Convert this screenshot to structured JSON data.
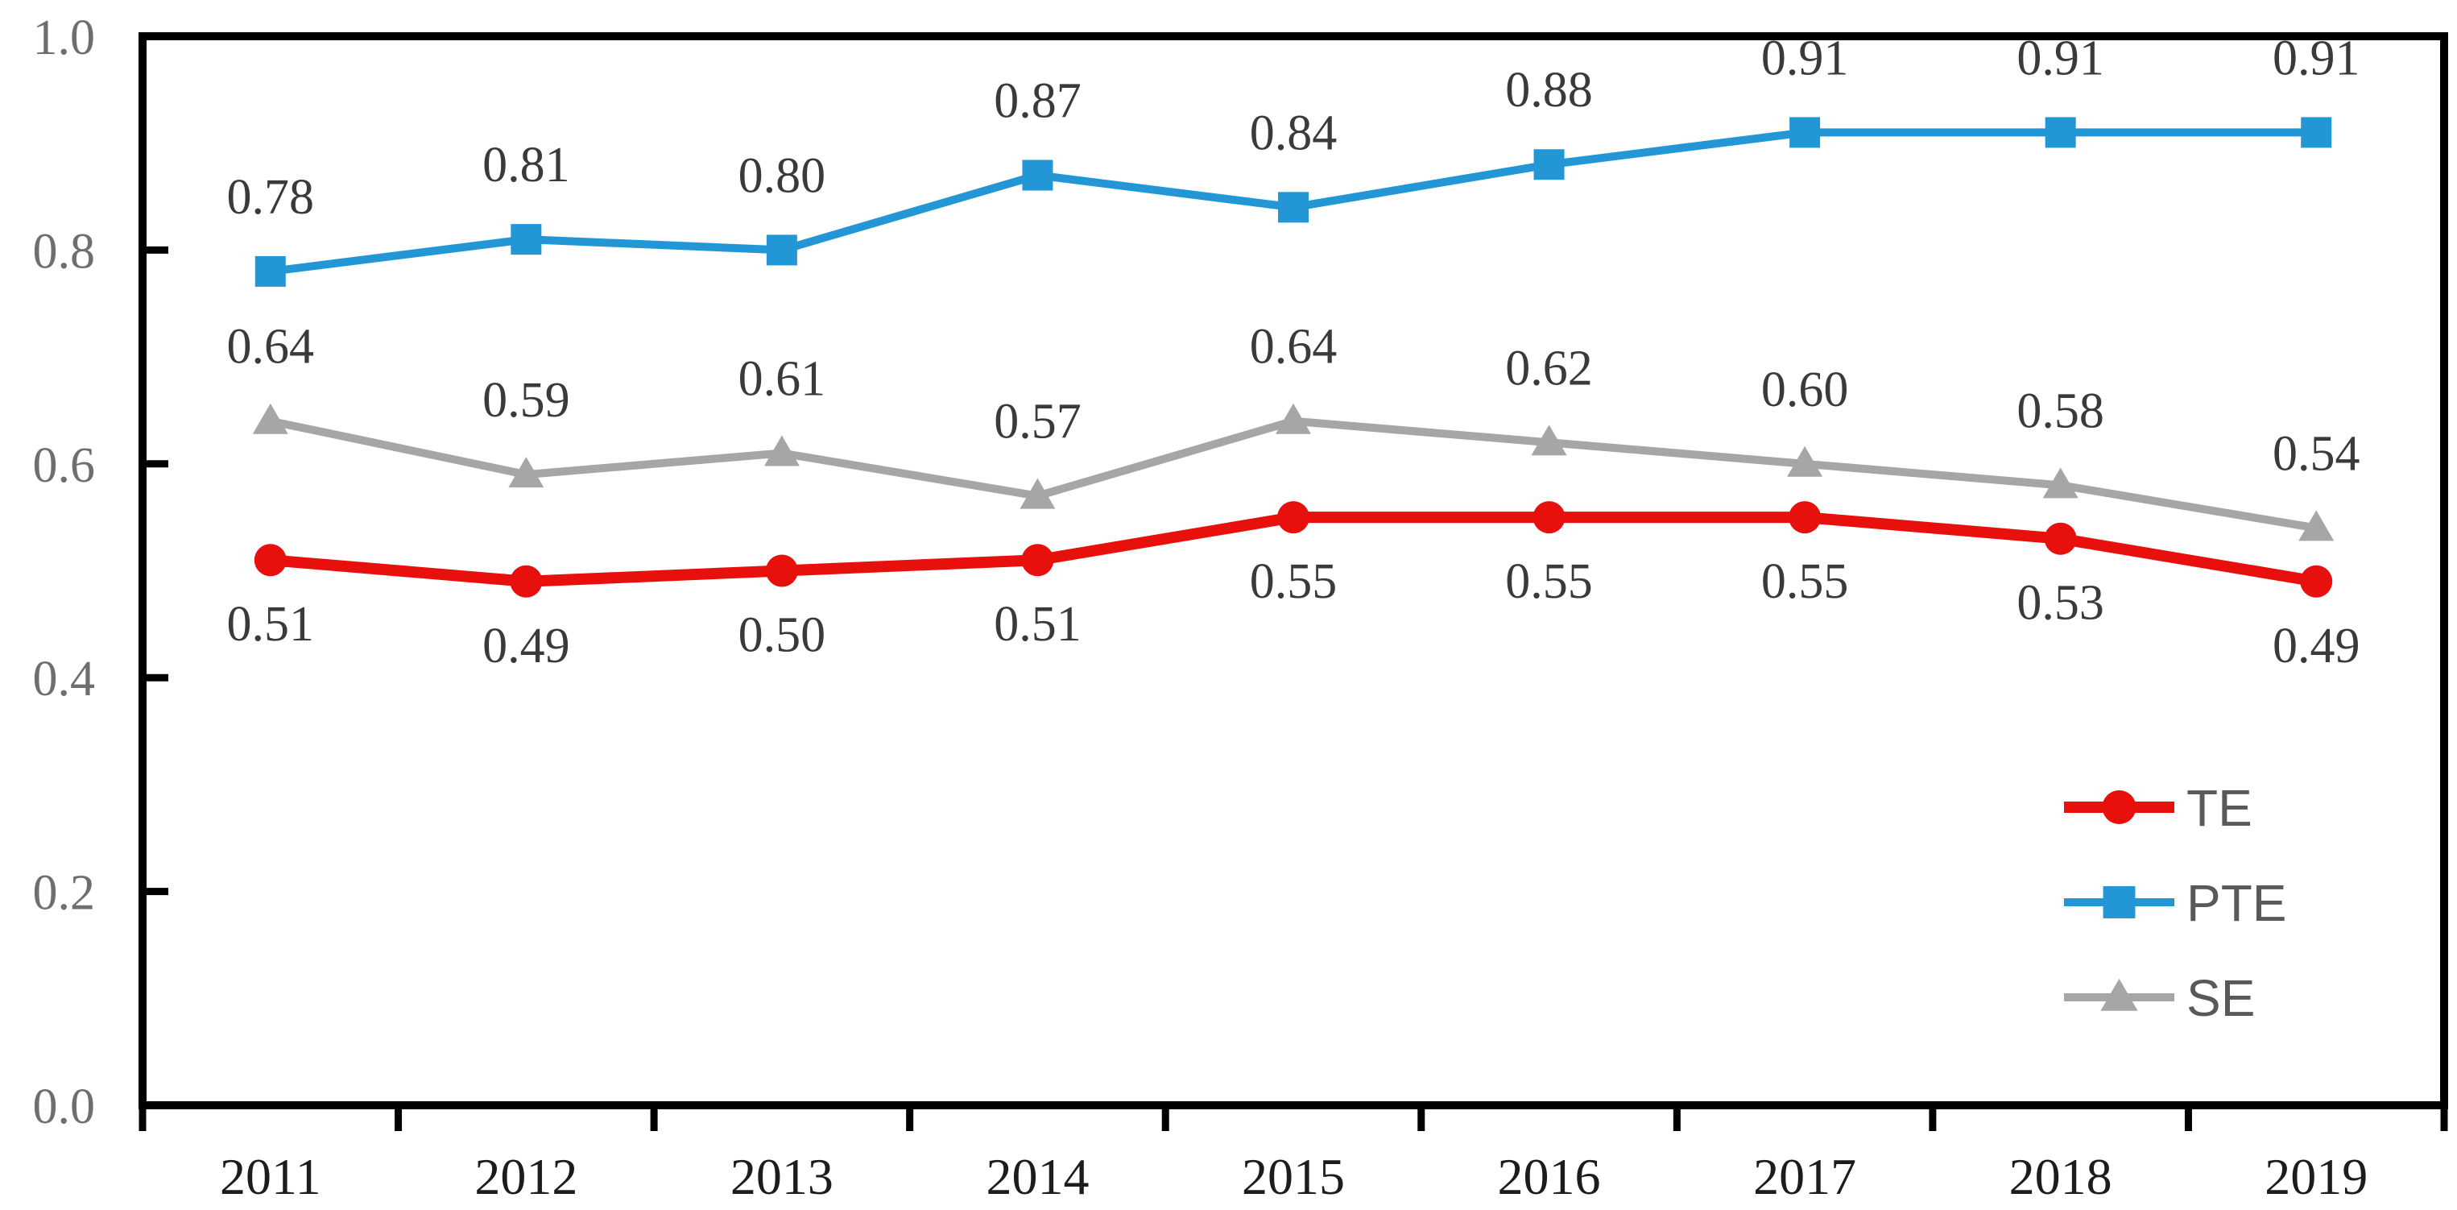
{
  "chart_data": {
    "type": "line",
    "title": "",
    "categories": [
      "2011",
      "2012",
      "2013",
      "2014",
      "2015",
      "2016",
      "2017",
      "2018",
      "2019"
    ],
    "series": [
      {
        "name": "TE",
        "color": "#e8100c",
        "marker": "circle",
        "line_width": 14,
        "data_label_position": "below",
        "values": [
          0.51,
          0.49,
          0.5,
          0.51,
          0.55,
          0.55,
          0.55,
          0.53,
          0.49
        ]
      },
      {
        "name": "PTE",
        "color": "#2396d5",
        "marker": "square",
        "line_width": 10,
        "data_label_position": "above",
        "values": [
          0.78,
          0.81,
          0.8,
          0.87,
          0.84,
          0.88,
          0.91,
          0.91,
          0.91
        ]
      },
      {
        "name": "SE",
        "color": "#a6a6a6",
        "marker": "triangle",
        "line_width": 10,
        "data_label_position": "above",
        "values": [
          0.64,
          0.59,
          0.61,
          0.57,
          0.64,
          0.62,
          0.6,
          0.58,
          0.54
        ]
      }
    ],
    "y_axis": {
      "min": 0.0,
      "max": 1.0,
      "tick_interval": 0.2,
      "tick_labels": [
        "0.0",
        "0.2",
        "0.4",
        "0.6",
        "0.8",
        "1.0"
      ]
    },
    "x_axis": {
      "tick_labels": [
        "2011",
        "2012",
        "2013",
        "2014",
        "2015",
        "2016",
        "2017",
        "2018",
        "2019"
      ]
    },
    "legend": {
      "position": "inside-bottom-right",
      "entries": [
        "TE",
        "PTE",
        "SE"
      ]
    },
    "data_label_format": "0.00",
    "grid": false,
    "plot_border": true,
    "colors": {
      "axis": "#000000",
      "y_tick_label": "#6e6e6e",
      "x_tick_label": "#1c1c1c",
      "data_label": "#3a3a3a",
      "legend_text": "#595959"
    }
  }
}
